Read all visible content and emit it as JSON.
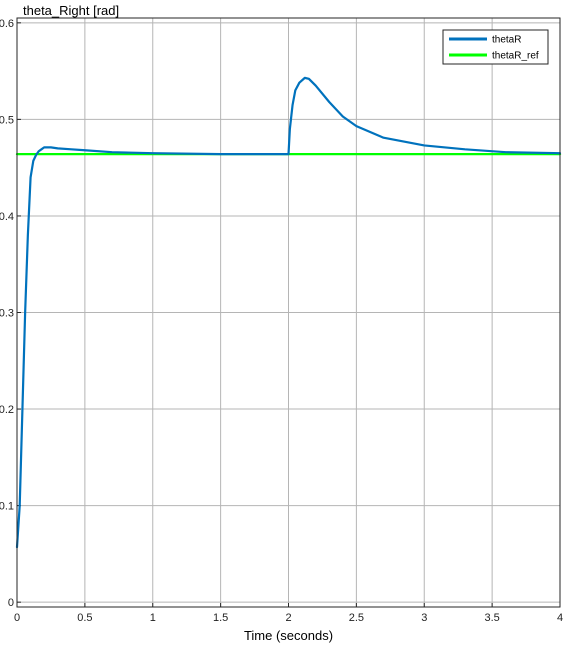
{
  "chart_data": {
    "type": "line",
    "title": "theta_Right [rad]",
    "xlabel": "Time (seconds)",
    "ylabel": "",
    "xlim": [
      0,
      4
    ],
    "ylim": [
      -0.005,
      0.605
    ],
    "xticks": [
      0,
      0.5,
      1,
      1.5,
      2,
      2.5,
      3,
      3.5,
      4
    ],
    "xtick_labels": [
      "0",
      "0.5",
      "1",
      "1.5",
      "2",
      "2.5",
      "3",
      "3.5",
      "4"
    ],
    "yticks": [
      0,
      0.1,
      0.2,
      0.3,
      0.4,
      0.5,
      0.6
    ],
    "ytick_labels": [
      "0",
      "0.1",
      "0.2",
      "0.3",
      "0.4",
      "0.5",
      "0.6"
    ],
    "grid": true,
    "legend_position": "top-right",
    "series": [
      {
        "name": "thetaR",
        "color": "#0072BD",
        "x": [
          0,
          0.02,
          0.04,
          0.06,
          0.08,
          0.1,
          0.12,
          0.14,
          0.16,
          0.18,
          0.2,
          0.25,
          0.3,
          0.4,
          0.5,
          0.7,
          1.0,
          1.5,
          1.99,
          2.0,
          2.01,
          2.03,
          2.05,
          2.08,
          2.12,
          2.15,
          2.2,
          2.3,
          2.4,
          2.5,
          2.7,
          3.0,
          3.3,
          3.6,
          4.0
        ],
        "values": [
          0.057,
          0.1,
          0.2,
          0.3,
          0.38,
          0.44,
          0.457,
          0.463,
          0.467,
          0.469,
          0.471,
          0.471,
          0.47,
          0.469,
          0.468,
          0.466,
          0.465,
          0.464,
          0.464,
          0.464,
          0.49,
          0.515,
          0.53,
          0.538,
          0.543,
          0.542,
          0.535,
          0.518,
          0.503,
          0.493,
          0.481,
          0.473,
          0.469,
          0.466,
          0.465
        ]
      },
      {
        "name": "thetaR_ref",
        "color": "#00FF00",
        "x": [
          0,
          4
        ],
        "values": [
          0.464,
          0.464
        ]
      }
    ]
  }
}
